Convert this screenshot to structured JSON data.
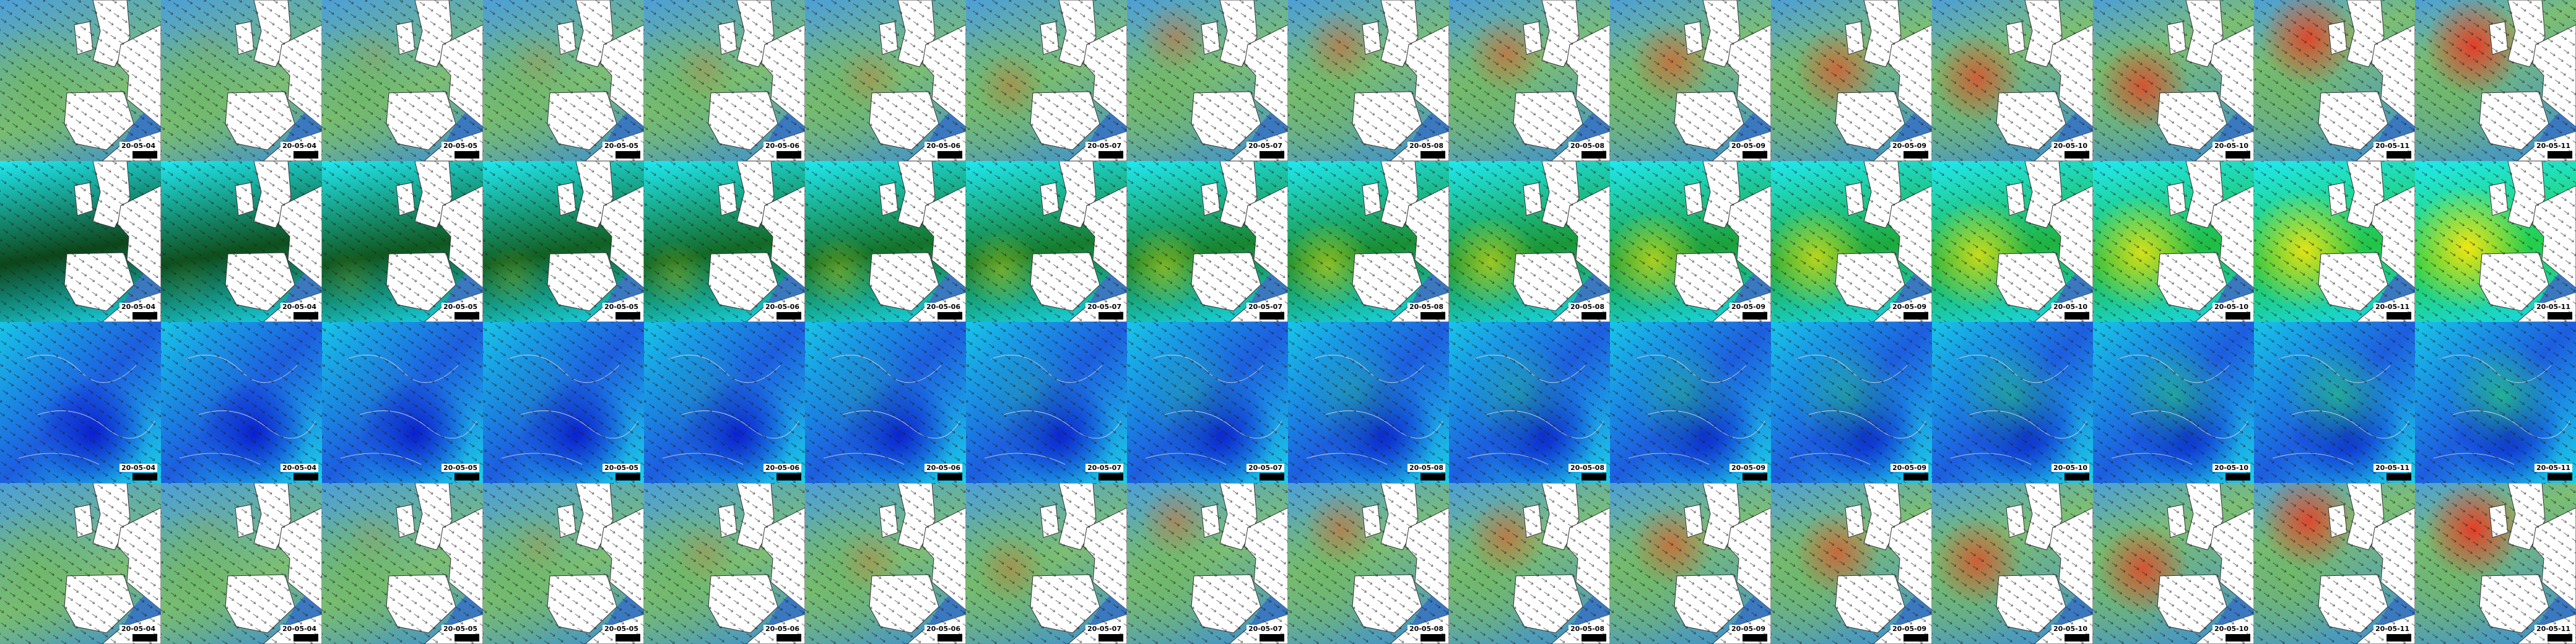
{
  "rows": [
    [
      "20-05-04",
      "20-05-04",
      "20-05-05",
      "20-05-05",
      "20-05-06",
      "20-05-06",
      "20-05-07",
      "20-05-07",
      "20-05-08",
      "20-05-08",
      "20-05-09",
      "20-05-09",
      "20-05-10",
      "20-05-10",
      "20-05-11",
      "20-05-11"
    ],
    [
      "20-05-04",
      "20-05-04",
      "20-05-05",
      "20-05-05",
      "20-05-06",
      "20-05-06",
      "20-05-07",
      "20-05-07",
      "20-05-08",
      "20-05-08",
      "20-05-09",
      "20-05-09",
      "20-05-10",
      "20-05-10",
      "20-05-11",
      "20-05-11"
    ],
    [
      "20-05-04",
      "20-05-04",
      "20-05-05",
      "20-05-05",
      "20-05-06",
      "20-05-06",
      "20-05-07",
      "20-05-07",
      "20-05-08",
      "20-05-08",
      "20-05-09",
      "20-05-09",
      "20-05-10",
      "20-05-10",
      "20-05-11",
      "20-05-11"
    ],
    [
      "20-05-04",
      "20-05-04",
      "20-05-05",
      "20-05-05",
      "20-05-06",
      "20-05-06",
      "20-05-07",
      "20-05-07",
      "20-05-08",
      "20-05-08",
      "20-05-09",
      "20-05-09",
      "20-05-10",
      "20-05-10",
      "20-05-11",
      "20-05-11"
    ]
  ]
}
